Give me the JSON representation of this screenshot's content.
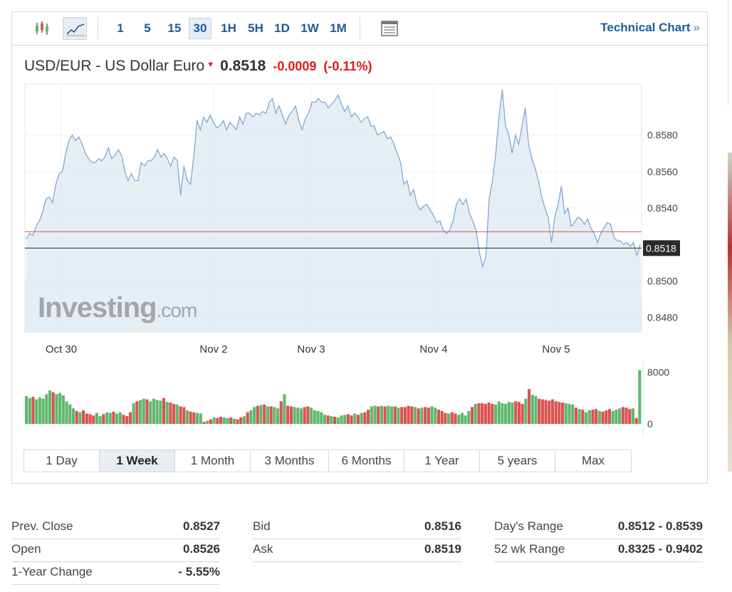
{
  "toolbar": {
    "chart_type_icons": [
      "candlestick-icon",
      "line-chart-icon"
    ],
    "timeframes": [
      {
        "label": "1",
        "active": false
      },
      {
        "label": "5",
        "active": false
      },
      {
        "label": "15",
        "active": false
      },
      {
        "label": "30",
        "active": true
      },
      {
        "label": "1H",
        "active": false
      },
      {
        "label": "5H",
        "active": false
      },
      {
        "label": "1D",
        "active": false
      },
      {
        "label": "1W",
        "active": false
      },
      {
        "label": "1M",
        "active": false
      }
    ],
    "table_icon": "table-icon",
    "technical_chart_label": "Technical Chart",
    "technical_chart_chevron": "»"
  },
  "quote": {
    "name": "USD/EUR - US Dollar Euro",
    "direction_icon": "down-arrow-icon",
    "price": "0.8518",
    "change": "-0.0009",
    "change_pct": "(-0.11%)",
    "down_color": "#e01818"
  },
  "watermark": {
    "brand": "Investing",
    "suffix": ".com"
  },
  "chart_data": {
    "type": "line",
    "price_series": {
      "x_labels": [
        "Oct 30",
        "Nov 2",
        "Nov 3",
        "Nov 4",
        "Nov 5"
      ],
      "y_ticks": [
        "0.8580",
        "0.8560",
        "0.8540",
        "0.8500",
        "0.8480"
      ],
      "ylim": [
        0.8472,
        0.8608
      ],
      "last_value_label": "0.8518",
      "previous_close_line": 0.8527,
      "current_line": 0.8518,
      "values": [
        0.8523,
        0.8526,
        0.8525,
        0.853,
        0.8533,
        0.8538,
        0.8545,
        0.8546,
        0.8543,
        0.8553,
        0.8559,
        0.856,
        0.857,
        0.8577,
        0.858,
        0.8577,
        0.8579,
        0.8575,
        0.857,
        0.8567,
        0.8565,
        0.8565,
        0.8567,
        0.8566,
        0.8568,
        0.8573,
        0.8567,
        0.8569,
        0.8572,
        0.8569,
        0.856,
        0.8555,
        0.8559,
        0.8555,
        0.8555,
        0.8565,
        0.8563,
        0.8566,
        0.8566,
        0.8568,
        0.8572,
        0.8568,
        0.857,
        0.8567,
        0.8563,
        0.8568,
        0.8566,
        0.8547,
        0.8563,
        0.8555,
        0.8553,
        0.8568,
        0.8588,
        0.8583,
        0.859,
        0.8587,
        0.8591,
        0.8587,
        0.8584,
        0.8585,
        0.8588,
        0.8583,
        0.8587,
        0.8585,
        0.8583,
        0.859,
        0.8586,
        0.8592,
        0.8592,
        0.859,
        0.8592,
        0.8591,
        0.8593,
        0.8592,
        0.8598,
        0.86,
        0.8592,
        0.8596,
        0.8591,
        0.8586,
        0.8591,
        0.8593,
        0.8596,
        0.8588,
        0.8583,
        0.8589,
        0.8592,
        0.8598,
        0.8598,
        0.86,
        0.8598,
        0.8598,
        0.8595,
        0.8597,
        0.8599,
        0.8602,
        0.8597,
        0.8593,
        0.8596,
        0.859,
        0.8592,
        0.859,
        0.8587,
        0.8589,
        0.859,
        0.8585,
        0.8585,
        0.858,
        0.8581,
        0.8582,
        0.8578,
        0.8579,
        0.8575,
        0.857,
        0.8565,
        0.8553,
        0.8555,
        0.8547,
        0.855,
        0.8542,
        0.8539,
        0.8541,
        0.8542,
        0.8539,
        0.8536,
        0.8532,
        0.8533,
        0.8528,
        0.8526,
        0.8528,
        0.8533,
        0.8542,
        0.8545,
        0.8542,
        0.8545,
        0.8537,
        0.8533,
        0.8528,
        0.8516,
        0.8508,
        0.8513,
        0.8545,
        0.8555,
        0.857,
        0.859,
        0.8605,
        0.8585,
        0.858,
        0.857,
        0.858,
        0.8575,
        0.8585,
        0.8595,
        0.8575,
        0.8567,
        0.8562,
        0.8555,
        0.8546,
        0.854,
        0.8535,
        0.8521,
        0.8535,
        0.8542,
        0.8552,
        0.8537,
        0.854,
        0.853,
        0.8532,
        0.8535,
        0.8534,
        0.8531,
        0.8534,
        0.8529,
        0.8526,
        0.8521,
        0.8526,
        0.8529,
        0.8532,
        0.8531,
        0.8524,
        0.8522,
        0.8522,
        0.852,
        0.8521,
        0.8519,
        0.8521,
        0.8514,
        0.852
      ]
    },
    "volume_series": {
      "y_ticks": [
        "8000",
        "0"
      ],
      "ylim": [
        0,
        9600
      ],
      "up_color": "#5fb870",
      "down_color": "#d9544f",
      "values": [
        4300,
        4000,
        4200,
        3800,
        4100,
        3900,
        4600,
        5200,
        4900,
        4600,
        4800,
        4400,
        3500,
        3000,
        2400,
        2000,
        1800,
        2100,
        1600,
        1500,
        1300,
        1700,
        1200,
        1500,
        1800,
        1700,
        1900,
        1600,
        1800,
        1400,
        1200,
        1800,
        3200,
        3500,
        3700,
        3900,
        3800,
        3500,
        3900,
        3700,
        3600,
        4000,
        3400,
        3300,
        3100,
        3000,
        2700,
        2600,
        2100,
        1900,
        1800,
        1700,
        1600,
        300,
        500,
        700,
        1000,
        900,
        1100,
        1000,
        900,
        1000,
        800,
        700,
        1000,
        1200,
        1800,
        2100,
        2600,
        2800,
        2900,
        3000,
        2700,
        2700,
        2600,
        2400,
        3500,
        4600,
        2800,
        2700,
        2600,
        2500,
        2400,
        2600,
        2700,
        2500,
        2100,
        2000,
        1800,
        1400,
        1300,
        1200,
        1100,
        1000,
        1300,
        1400,
        1500,
        1300,
        1600,
        1400,
        1700,
        1800,
        2200,
        2700,
        2800,
        2700,
        2800,
        2700,
        2800,
        2700,
        2700,
        2500,
        2600,
        2600,
        2800,
        2700,
        2600,
        2400,
        2500,
        2600,
        2500,
        2700,
        2500,
        2200,
        2000,
        1700,
        1600,
        1800,
        1600,
        1400,
        1700,
        1300,
        2000,
        2600,
        3100,
        3200,
        3200,
        3100,
        3300,
        3100,
        3000,
        3500,
        3200,
        3100,
        3400,
        3300,
        3500,
        3400,
        3100,
        3900,
        5400,
        4500,
        4300,
        3900,
        3800,
        3700,
        3600,
        3800,
        3500,
        3400,
        3300,
        3200,
        3100,
        3000,
        2500,
        2300,
        2200,
        1800,
        2100,
        2200,
        2300,
        2000,
        1900,
        2100,
        2300,
        2000,
        2200,
        2400,
        2600,
        2500,
        2300,
        2400,
        900,
        8300
      ]
    }
  },
  "ranges": [
    {
      "label": "1 Day",
      "active": false
    },
    {
      "label": "1 Week",
      "active": true
    },
    {
      "label": "1 Month",
      "active": false
    },
    {
      "label": "3 Months",
      "active": false
    },
    {
      "label": "6 Months",
      "active": false
    },
    {
      "label": "1 Year",
      "active": false
    },
    {
      "label": "5 years",
      "active": false
    },
    {
      "label": "Max",
      "active": false
    }
  ],
  "stats": {
    "col1": [
      {
        "label": "Prev. Close",
        "value": "0.8527"
      },
      {
        "label": "Open",
        "value": "0.8526"
      },
      {
        "label": "1-Year Change",
        "value": "- 5.55%"
      }
    ],
    "col2": [
      {
        "label": "Bid",
        "value": "0.8516"
      },
      {
        "label": "Ask",
        "value": "0.8519"
      }
    ],
    "col3": [
      {
        "label": "Day's Range",
        "value": "0.8512 - 0.8539"
      },
      {
        "label": "52 wk Range",
        "value": "0.8325 - 0.9402"
      }
    ]
  }
}
